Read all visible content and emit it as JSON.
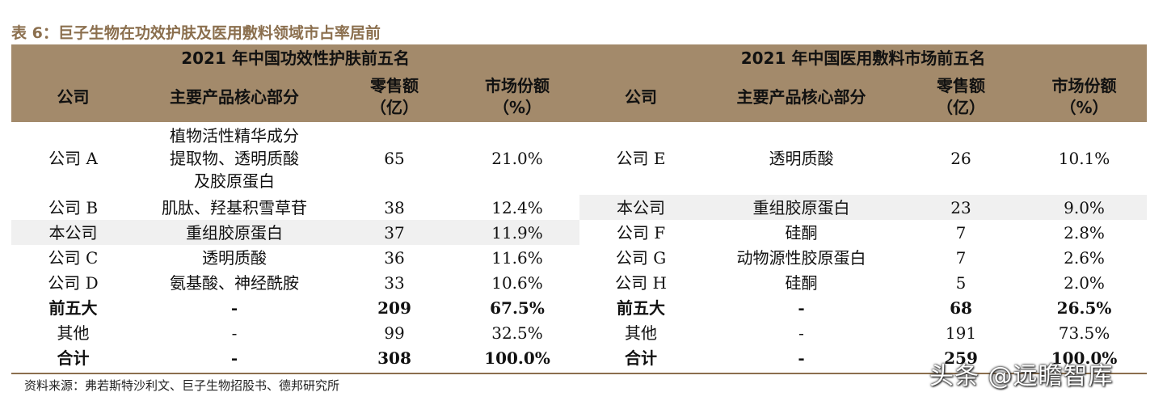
{
  "caption": "表 6：巨子生物在功效护肤及医用敷料领域市占率居前",
  "left": {
    "title": "2021 年中国功效性护肤前五名",
    "headers": [
      "公司",
      "主要产品核心部分",
      "零售额\n（亿）",
      "市场份额\n（%）"
    ],
    "rows": [
      [
        "公司 A",
        "植物活性精华成分\n提取物、透明质酸\n及胶原蛋白",
        "65",
        "21.0%"
      ],
      [
        "公司 B",
        "肌肽、羟基积雪草苷",
        "38",
        "12.4%"
      ],
      [
        "本公司",
        "重组胶原蛋白",
        "37",
        "11.9%"
      ],
      [
        "公司 C",
        "透明质酸",
        "36",
        "11.6%"
      ],
      [
        "公司 D",
        "氨基酸、神经酰胺",
        "33",
        "10.6%"
      ],
      [
        "前五大",
        "-",
        "209",
        "67.5%"
      ],
      [
        "其他",
        "-",
        "99",
        "32.5%"
      ],
      [
        "合计",
        "-",
        "308",
        "100.0%"
      ]
    ]
  },
  "right": {
    "title": "2021 年中国医用敷料市场前五名",
    "headers": [
      "公司",
      "主要产品核心部分",
      "零售额\n（亿）",
      "市场份额\n（%）"
    ],
    "rows": [
      [
        "公司 E",
        "透明质酸",
        "26",
        "10.1%"
      ],
      [
        "本公司",
        "重组胶原蛋白",
        "23",
        "9.0%"
      ],
      [
        "公司 F",
        "硅酮",
        "7",
        "2.8%"
      ],
      [
        "公司 G",
        "动物源性胶原蛋白",
        "7",
        "2.6%"
      ],
      [
        "公司 H",
        "硅酮",
        "5",
        "2.0%"
      ],
      [
        "前五大",
        "-",
        "68",
        "26.5%"
      ],
      [
        "其他",
        "-",
        "191",
        "73.5%"
      ],
      [
        "合计",
        "-",
        "259",
        "100.0%"
      ]
    ]
  },
  "source": "资料来源：弗若斯特沙利文、巨子生物招股书、德邦研究所",
  "watermark": "头条 @远瞻智库",
  "colors": {
    "header_bg": "#a38a6b",
    "caption": "#8b6f4e",
    "shade": "#f0f0f0"
  }
}
